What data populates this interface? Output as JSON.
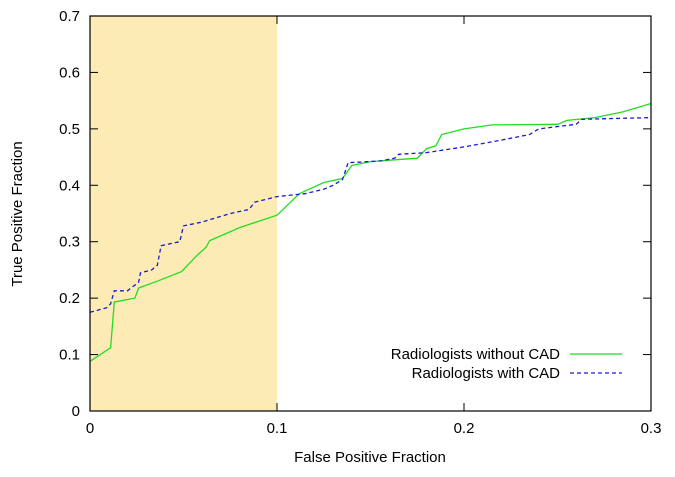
{
  "chart_data": {
    "type": "line",
    "xlabel": "False Positive Fraction",
    "ylabel": "True Positive Fraction",
    "xlim": [
      0,
      0.3
    ],
    "ylim": [
      0,
      0.7
    ],
    "xticks": [
      0,
      0.1,
      0.2,
      0.3
    ],
    "yticks": [
      0,
      0.1,
      0.2,
      0.3,
      0.4,
      0.5,
      0.6,
      0.7
    ],
    "legend": "lower right",
    "shaded_region": {
      "xlim": [
        0,
        0.1
      ],
      "color": "#fcebb4"
    },
    "series": [
      {
        "name": "Radiologists without CAD",
        "color": "#22dd22",
        "dash": "solid",
        "x": [
          0,
          0.011,
          0.013,
          0.024,
          0.026,
          0.036,
          0.049,
          0.057,
          0.062,
          0.064,
          0.08,
          0.1,
          0.112,
          0.125,
          0.135,
          0.14,
          0.15,
          0.175,
          0.18,
          0.185,
          0.188,
          0.2,
          0.215,
          0.25,
          0.255,
          0.27,
          0.285,
          0.3
        ],
        "values": [
          0.088,
          0.112,
          0.193,
          0.2,
          0.218,
          0.23,
          0.247,
          0.275,
          0.29,
          0.302,
          0.325,
          0.347,
          0.385,
          0.405,
          0.412,
          0.435,
          0.442,
          0.448,
          0.465,
          0.47,
          0.49,
          0.5,
          0.507,
          0.508,
          0.515,
          0.52,
          0.53,
          0.545
        ]
      },
      {
        "name": "Radiologists with CAD",
        "color": "#1a1acc",
        "dash": "dashed",
        "x": [
          0,
          0.009,
          0.011,
          0.013,
          0.02,
          0.026,
          0.027,
          0.033,
          0.036,
          0.038,
          0.048,
          0.05,
          0.06,
          0.075,
          0.085,
          0.088,
          0.1,
          0.115,
          0.125,
          0.13,
          0.135,
          0.138,
          0.155,
          0.163,
          0.165,
          0.18,
          0.2,
          0.22,
          0.235,
          0.24,
          0.26,
          0.263,
          0.3
        ],
        "values": [
          0.175,
          0.183,
          0.19,
          0.213,
          0.213,
          0.228,
          0.245,
          0.25,
          0.258,
          0.293,
          0.3,
          0.328,
          0.335,
          0.35,
          0.357,
          0.37,
          0.38,
          0.385,
          0.393,
          0.4,
          0.41,
          0.44,
          0.443,
          0.448,
          0.455,
          0.458,
          0.468,
          0.48,
          0.49,
          0.5,
          0.508,
          0.517,
          0.52
        ]
      }
    ]
  }
}
